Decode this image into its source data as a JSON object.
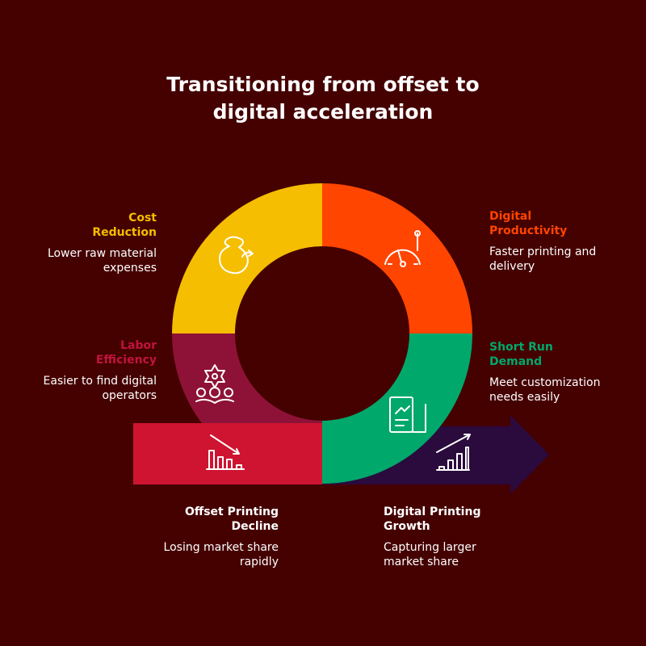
{
  "title_line1": "Transitioning from offset to",
  "title_line2": "digital acceleration",
  "colors": {
    "background": "#450000",
    "cost": "#F5BE00",
    "productivity": "#FF4500",
    "short_run": "#00A86B",
    "labor": "#8E1237",
    "offset": "#CE1430",
    "digital": "#2B0A3D"
  },
  "segments": {
    "cost": {
      "title1": "Cost",
      "title2": "Reduction",
      "desc1": "Lower raw material",
      "desc2": "expenses",
      "icon": "money-bag-icon"
    },
    "productivity": {
      "title1": "Digital",
      "title2": "Productivity",
      "desc1": "Faster printing and",
      "desc2": "delivery",
      "icon": "speedometer-icon"
    },
    "labor": {
      "title1": "Labor",
      "title2": "Efficiency",
      "desc1": "Easier to find digital",
      "desc2": "operators",
      "icon": "team-gear-icon"
    },
    "short_run": {
      "title1": "Short Run",
      "title2": "Demand",
      "desc1": "Meet customization",
      "desc2": "needs easily",
      "icon": "report-chart-icon"
    }
  },
  "arrows": {
    "offset": {
      "title1": "Offset Printing",
      "title2": "Decline",
      "desc1": "Losing market share",
      "desc2": "rapidly",
      "icon": "declining-bar-chart-icon"
    },
    "digital": {
      "title1": "Digital Printing",
      "title2": "Growth",
      "desc1": "Capturing larger",
      "desc2": "market share",
      "icon": "growing-bar-chart-icon"
    }
  }
}
